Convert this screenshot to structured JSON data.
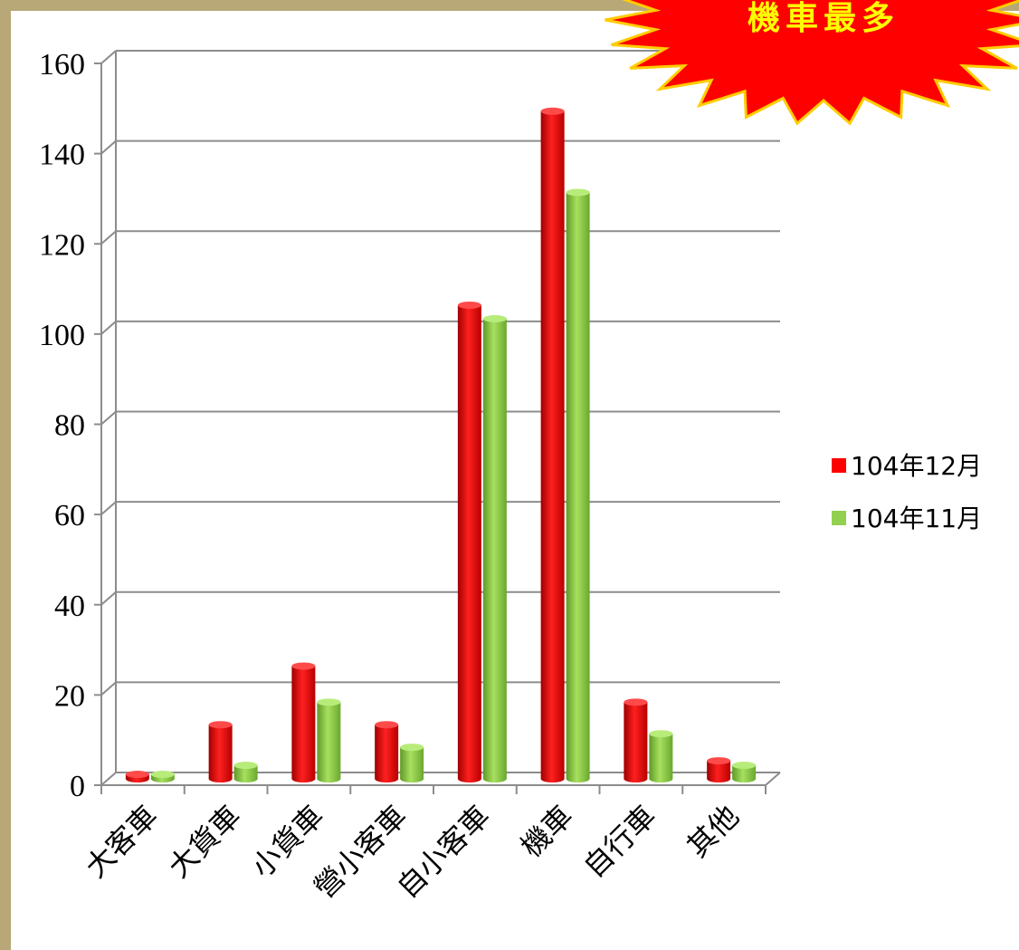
{
  "callout": {
    "text": "機車最多",
    "fill_color": "#ff0000",
    "text_color": "#ffff00"
  },
  "chart_data": {
    "type": "bar",
    "categories": [
      "大客車",
      "大貨車",
      "小貨車",
      "營小客車",
      "自小客車",
      "機車",
      "自行車",
      "其他"
    ],
    "series": [
      {
        "name": "104年12月",
        "color": "#ff0000",
        "values": [
          1,
          12,
          25,
          12,
          105,
          148,
          17,
          4
        ]
      },
      {
        "name": "104年11月",
        "color": "#92d050",
        "values": [
          1,
          3,
          17,
          7,
          102,
          130,
          10,
          3
        ]
      }
    ],
    "yticks": [
      "0",
      "20",
      "40",
      "60",
      "80",
      "100",
      "120",
      "140",
      "160"
    ],
    "ylim": [
      0,
      160
    ],
    "grid": true,
    "legend": "right"
  }
}
